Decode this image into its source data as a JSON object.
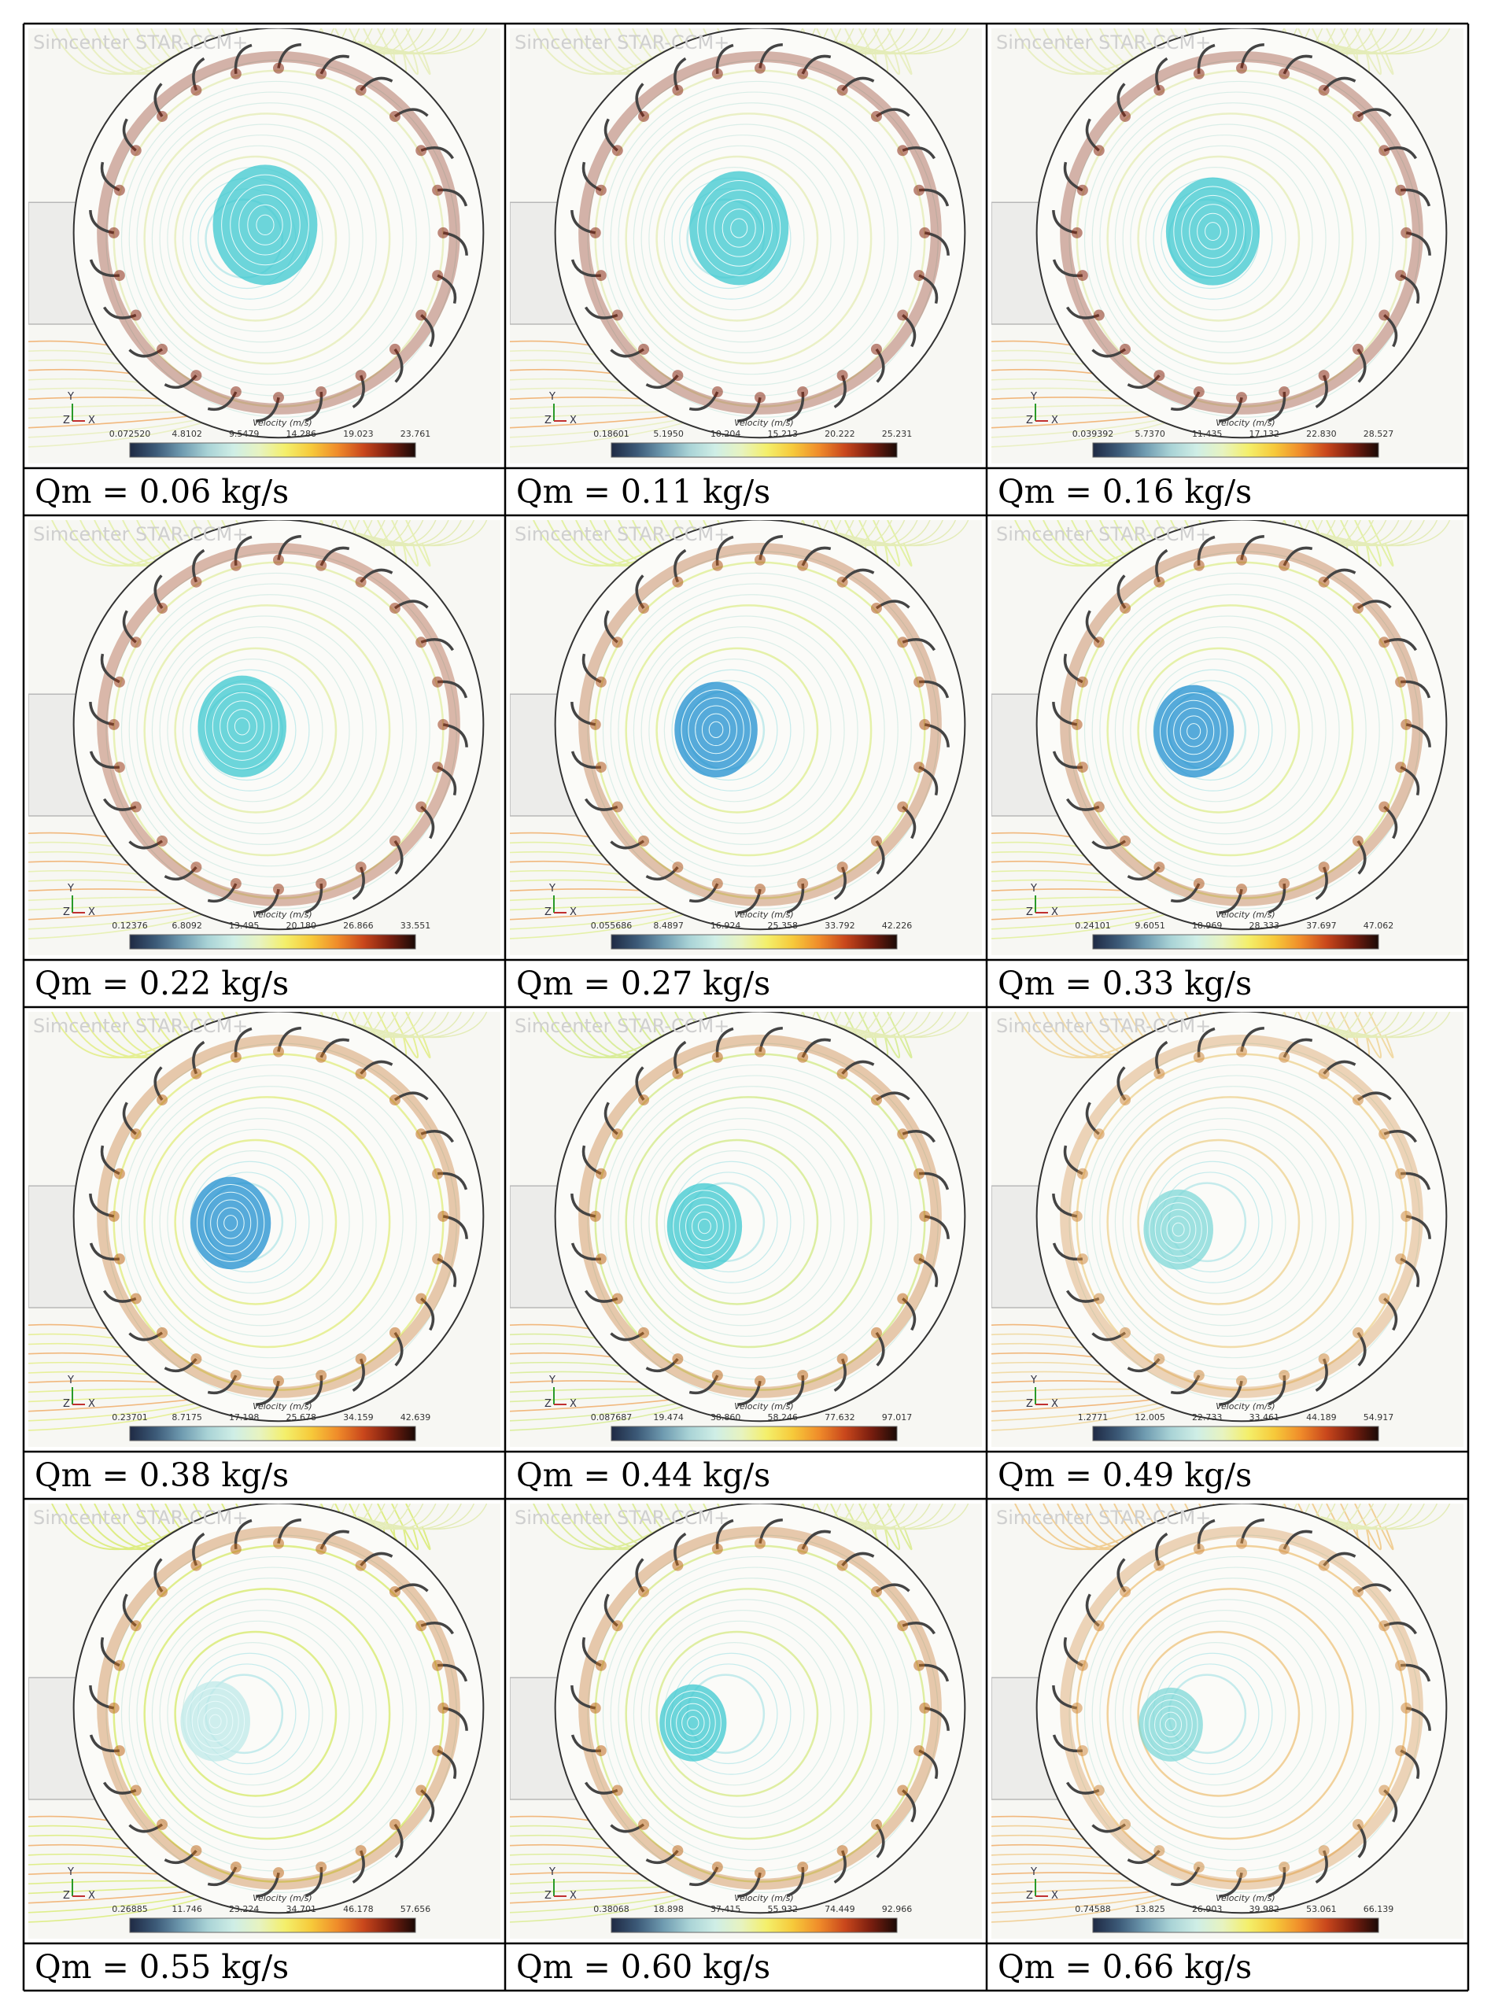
{
  "watermark": "Simcenter STAR-CCM+",
  "legend_title": "Velocity (m/s)",
  "axis_labels": {
    "y": "Y",
    "z": "Z",
    "x": "X"
  },
  "colors": {
    "colormap": [
      "#1f2a44",
      "#3c5a78",
      "#6f9bb0",
      "#a9d3d6",
      "#cfeee6",
      "#e7f3c0",
      "#f4ef6a",
      "#f6c93a",
      "#f08c2a",
      "#c9471c",
      "#7a1e0f",
      "#1a0a06"
    ],
    "swirl_cyan": "#3cc8d0",
    "swirl_blue": "#1f8fd0",
    "blade": "#444444"
  },
  "cases": [
    {
      "caption": "Qm = 0.06 kg/s",
      "ticks": [
        "0.072520",
        "4.8102",
        "9.5479",
        "14.286",
        "19.023",
        "23.761"
      ],
      "core": 0.95,
      "coreColor": "#3cc8d0",
      "band": "#8a2a14",
      "flow": "#e8eec0"
    },
    {
      "caption": "Qm = 0.11 kg/s",
      "ticks": [
        "0.18601",
        "5.1950",
        "10.204",
        "15.213",
        "20.222",
        "25.231"
      ],
      "core": 0.85,
      "coreColor": "#3cc8d0",
      "band": "#8a2a14",
      "flow": "#e8eec0"
    },
    {
      "caption": "Qm = 0.16 kg/s",
      "ticks": [
        "0.039392",
        "5.7370",
        "11.435",
        "17.132",
        "22.830",
        "28.527"
      ],
      "core": 0.75,
      "coreColor": "#3cc8d0",
      "band": "#8a2a14",
      "flow": "#e8eec0"
    },
    {
      "caption": "Qm = 0.22 kg/s",
      "ticks": [
        "0.12376",
        "6.8092",
        "13.495",
        "20.180",
        "26.866",
        "33.551"
      ],
      "core": 0.65,
      "coreColor": "#3cc8d0",
      "band": "#9a3a18",
      "flow": "#e6f0b0"
    },
    {
      "caption": "Qm = 0.27 kg/s",
      "ticks": [
        "0.055686",
        "8.4897",
        "16.924",
        "25.358",
        "33.792",
        "42.226"
      ],
      "core": 0.55,
      "coreColor": "#1f8fd0",
      "band": "#b0561c",
      "flow": "#e2f0a0"
    },
    {
      "caption": "Qm = 0.33 kg/s",
      "ticks": [
        "0.24101",
        "9.6051",
        "18.969",
        "28.333",
        "37.697",
        "47.062"
      ],
      "core": 0.5,
      "coreColor": "#1f8fd0",
      "band": "#b0561c",
      "flow": "#e2f0a0"
    },
    {
      "caption": "Qm = 0.38 kg/s",
      "ticks": [
        "0.23701",
        "8.7175",
        "17.198",
        "25.678",
        "34.159",
        "42.639"
      ],
      "core": 0.5,
      "coreColor": "#1f8fd0",
      "band": "#c06a1c",
      "flow": "#e4ee90"
    },
    {
      "caption": "Qm = 0.44 kg/s",
      "ticks": [
        "0.087687",
        "19.474",
        "38.860",
        "58.246",
        "77.632",
        "97.017"
      ],
      "core": 0.4,
      "coreColor": "#3cc8d0",
      "band": "#c06a1c",
      "flow": "#d8ec98"
    },
    {
      "caption": "Qm = 0.49 kg/s",
      "ticks": [
        "1.2771",
        "12.005",
        "22.733",
        "33.461",
        "44.189",
        "54.917"
      ],
      "core": 0.3,
      "coreColor": "#7fd8d8",
      "band": "#d08a40",
      "flow": "#f0d8a0"
    },
    {
      "caption": "Qm = 0.55 kg/s",
      "ticks": [
        "0.26885",
        "11.746",
        "23.224",
        "34.701",
        "46.178",
        "57.656"
      ],
      "core": 0.3,
      "coreColor": "#bfeaea",
      "band": "#c06a1c",
      "flow": "#dcec80"
    },
    {
      "caption": "Qm = 0.60 kg/s",
      "ticks": [
        "0.38068",
        "18.898",
        "37.415",
        "55.932",
        "74.449",
        "92.966"
      ],
      "core": 0.25,
      "coreColor": "#3cc8d0",
      "band": "#c06a1c",
      "flow": "#dcec98"
    },
    {
      "caption": "Qm = 0.66 kg/s",
      "ticks": [
        "0.74588",
        "13.825",
        "26.903",
        "39.982",
        "53.061",
        "66.139"
      ],
      "core": 0.2,
      "coreColor": "#7fd8d8",
      "band": "#d08a40",
      "flow": "#f0cc90"
    }
  ]
}
